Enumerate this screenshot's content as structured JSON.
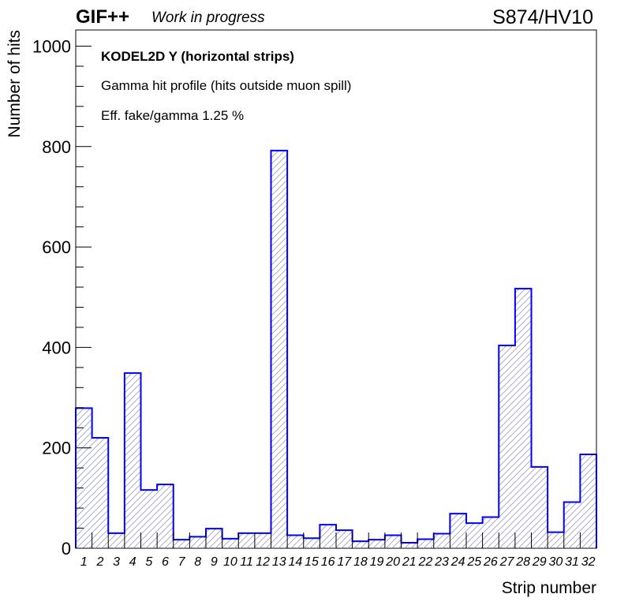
{
  "header": {
    "experiment": "GIF++",
    "status": "Work in progress",
    "run": "S874/HV10"
  },
  "legend": {
    "line1": "KODEL2D Y (horizontal strips)",
    "line2": "Gamma hit profile (hits outside muon spill)",
    "line3": "Eff. fake/gamma 1.25 %"
  },
  "colors": {
    "series": "#0000ff",
    "hatch": "#9a9ac8",
    "axis": "#000000"
  },
  "chart_data": {
    "type": "bar",
    "style": "step histogram with diagonal hatch fill",
    "xlabel": "Strip number",
    "ylabel": "Number of hits",
    "ylim": [
      0,
      1000
    ],
    "yticks": [
      0,
      200,
      400,
      600,
      800,
      1000
    ],
    "categories": [
      "1",
      "2",
      "3",
      "4",
      "5",
      "6",
      "7",
      "8",
      "9",
      "10",
      "11",
      "12",
      "13",
      "14",
      "15",
      "16",
      "17",
      "18",
      "19",
      "20",
      "21",
      "22",
      "23",
      "24",
      "25",
      "26",
      "27",
      "28",
      "29",
      "30",
      "31",
      "32"
    ],
    "values": [
      279,
      220,
      30,
      349,
      116,
      127,
      17,
      23,
      39,
      19,
      30,
      30,
      792,
      26,
      20,
      47,
      36,
      14,
      17,
      26,
      11,
      18,
      29,
      69,
      50,
      62,
      404,
      517,
      162,
      32,
      92,
      187
    ],
    "grid": false,
    "legend_position": "top-left"
  }
}
